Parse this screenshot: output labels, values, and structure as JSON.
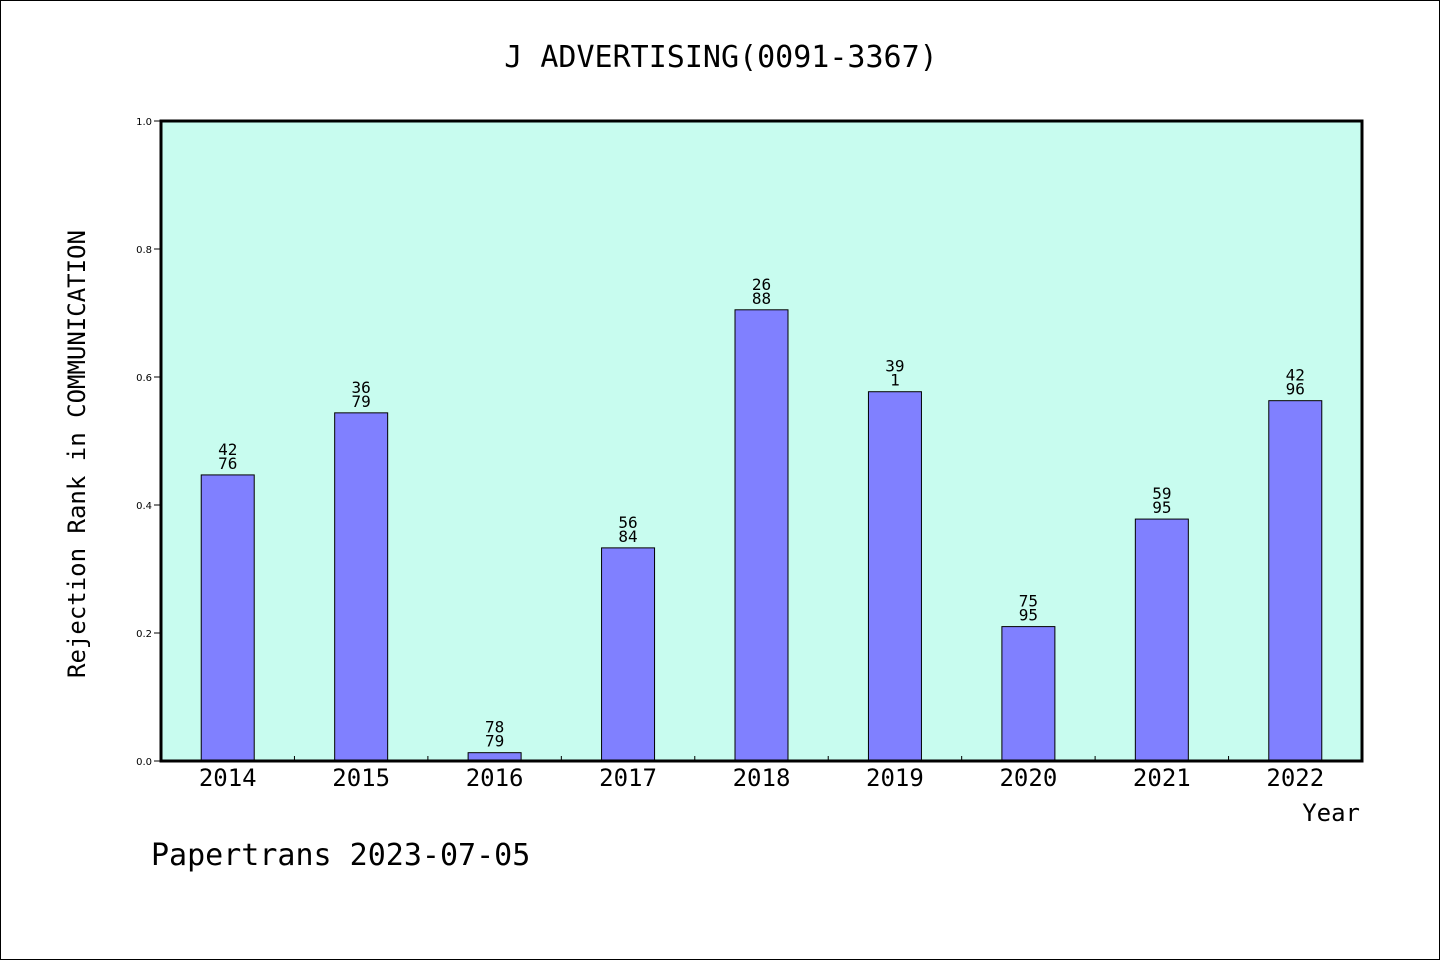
{
  "chart_data": {
    "type": "bar",
    "title": "J ADVERTISING(0091-3367)",
    "xlabel": "Year",
    "ylabel": "Rejection Rank in COMMUNICATION",
    "ylim": [
      0,
      1.0
    ],
    "yticks": [
      "0.0",
      "0.2",
      "0.4",
      "0.6",
      "0.8",
      "1.0"
    ],
    "grid": false,
    "categories": [
      "2014",
      "2015",
      "2016",
      "2017",
      "2018",
      "2019",
      "2020",
      "2021",
      "2022"
    ],
    "values": [
      0.447,
      0.544,
      0.013,
      0.333,
      0.705,
      0.577,
      0.21,
      0.378,
      0.563
    ],
    "bar_labels": [
      [
        "42",
        "76"
      ],
      [
        "36",
        "79"
      ],
      [
        "78",
        "79"
      ],
      [
        "56",
        "84"
      ],
      [
        "26",
        "88"
      ],
      [
        "39",
        "1"
      ],
      [
        "75",
        "95"
      ],
      [
        "59",
        "95"
      ],
      [
        "42",
        "96"
      ]
    ]
  },
  "footer": {
    "text": "Papertrans 2023-07-05"
  },
  "colors": {
    "plot_background": "#c8fcef",
    "bar_fill": "#8080ff",
    "bar_stroke": "#000000",
    "axis": "#000000"
  }
}
